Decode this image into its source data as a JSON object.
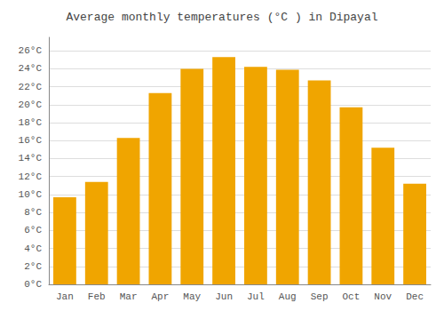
{
  "chart_data": {
    "type": "bar",
    "title": "Average monthly temperatures (°C ) in Dipayal",
    "categories": [
      "Jan",
      "Feb",
      "Mar",
      "Apr",
      "May",
      "Jun",
      "Jul",
      "Aug",
      "Sep",
      "Oct",
      "Nov",
      "Dec"
    ],
    "values": [
      9.7,
      11.4,
      16.3,
      21.3,
      24.0,
      25.3,
      24.2,
      23.9,
      22.7,
      19.7,
      15.2,
      11.2
    ],
    "color": "#F0A500",
    "ylim": [
      0,
      27.5
    ],
    "yticks": [
      {
        "value": 0,
        "label": "0°C"
      },
      {
        "value": 2,
        "label": "2°C"
      },
      {
        "value": 4,
        "label": "4°C"
      },
      {
        "value": 6,
        "label": "6°C"
      },
      {
        "value": 8,
        "label": "8°C"
      },
      {
        "value": 10,
        "label": "10°C"
      },
      {
        "value": 12,
        "label": "12°C"
      },
      {
        "value": 14,
        "label": "14°C"
      },
      {
        "value": 16,
        "label": "16°C"
      },
      {
        "value": 18,
        "label": "18°C"
      },
      {
        "value": 20,
        "label": "20°C"
      },
      {
        "value": 22,
        "label": "22°C"
      },
      {
        "value": 24,
        "label": "24°C"
      },
      {
        "value": 26,
        "label": "26°C"
      }
    ],
    "grid": true
  }
}
